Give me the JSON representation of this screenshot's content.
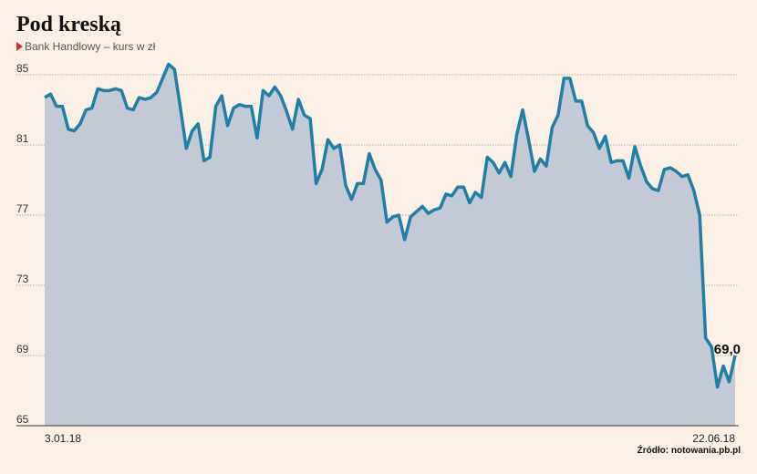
{
  "title": "Pod kreską",
  "subtitle": "Bank Handlowy – kurs w zł",
  "source": "Źródło: notowania.pb.pl",
  "colors": {
    "background": "#fcf0e4",
    "line": "#1f7fa6",
    "area": "#c3cad6",
    "accent_marker": "#e3262d"
  },
  "chart_data": {
    "type": "area",
    "title": "Pod kreską",
    "subtitle": "Bank Handlowy – kurs w zł",
    "ylim": [
      65,
      87
    ],
    "yticks": [
      65,
      69,
      73,
      77,
      81,
      85
    ],
    "x_start_label": "3.01.18",
    "x_end_label": "22.06.18",
    "grid": true,
    "last_value_label": "69,0",
    "series": [
      {
        "values": [
          83.7,
          83.9,
          83.2,
          83.2,
          81.9,
          81.8,
          82.2,
          83.0,
          83.1,
          84.2,
          84.1,
          84.1,
          84.2,
          84.1,
          83.1,
          83.0,
          83.7,
          83.6,
          83.7,
          84.0,
          84.8,
          85.6,
          85.3,
          83.1,
          80.8,
          81.8,
          82.2,
          80.1,
          80.3,
          83.2,
          83.8,
          82.1,
          83.1,
          83.3,
          83.2,
          83.2,
          81.4,
          84.1,
          83.8,
          84.3,
          83.8,
          82.9,
          81.9,
          83.6,
          82.7,
          82.5,
          78.8,
          79.6,
          81.3,
          80.8,
          81.0,
          78.7,
          77.9,
          78.8,
          78.8,
          80.5,
          79.6,
          79.0,
          76.6,
          76.9,
          77.0,
          75.6,
          76.9,
          77.2,
          77.5,
          77.1,
          77.3,
          77.4,
          78.2,
          78.1,
          78.6,
          78.6,
          77.7,
          78.3,
          78.0,
          80.3,
          80.0,
          79.4,
          80.0,
          79.2,
          81.6,
          83.0,
          81.3,
          79.5,
          80.2,
          79.8,
          82.0,
          82.7,
          84.8,
          84.8,
          83.5,
          83.5,
          82.1,
          81.7,
          80.8,
          81.5,
          80.0,
          80.1,
          80.1,
          79.1,
          80.9,
          79.8,
          78.9,
          78.5,
          78.4,
          79.6,
          79.7,
          79.5,
          79.2,
          79.3,
          78.4,
          77.0,
          70.0,
          69.5,
          67.2,
          68.4,
          67.5,
          69.0
        ]
      }
    ]
  }
}
